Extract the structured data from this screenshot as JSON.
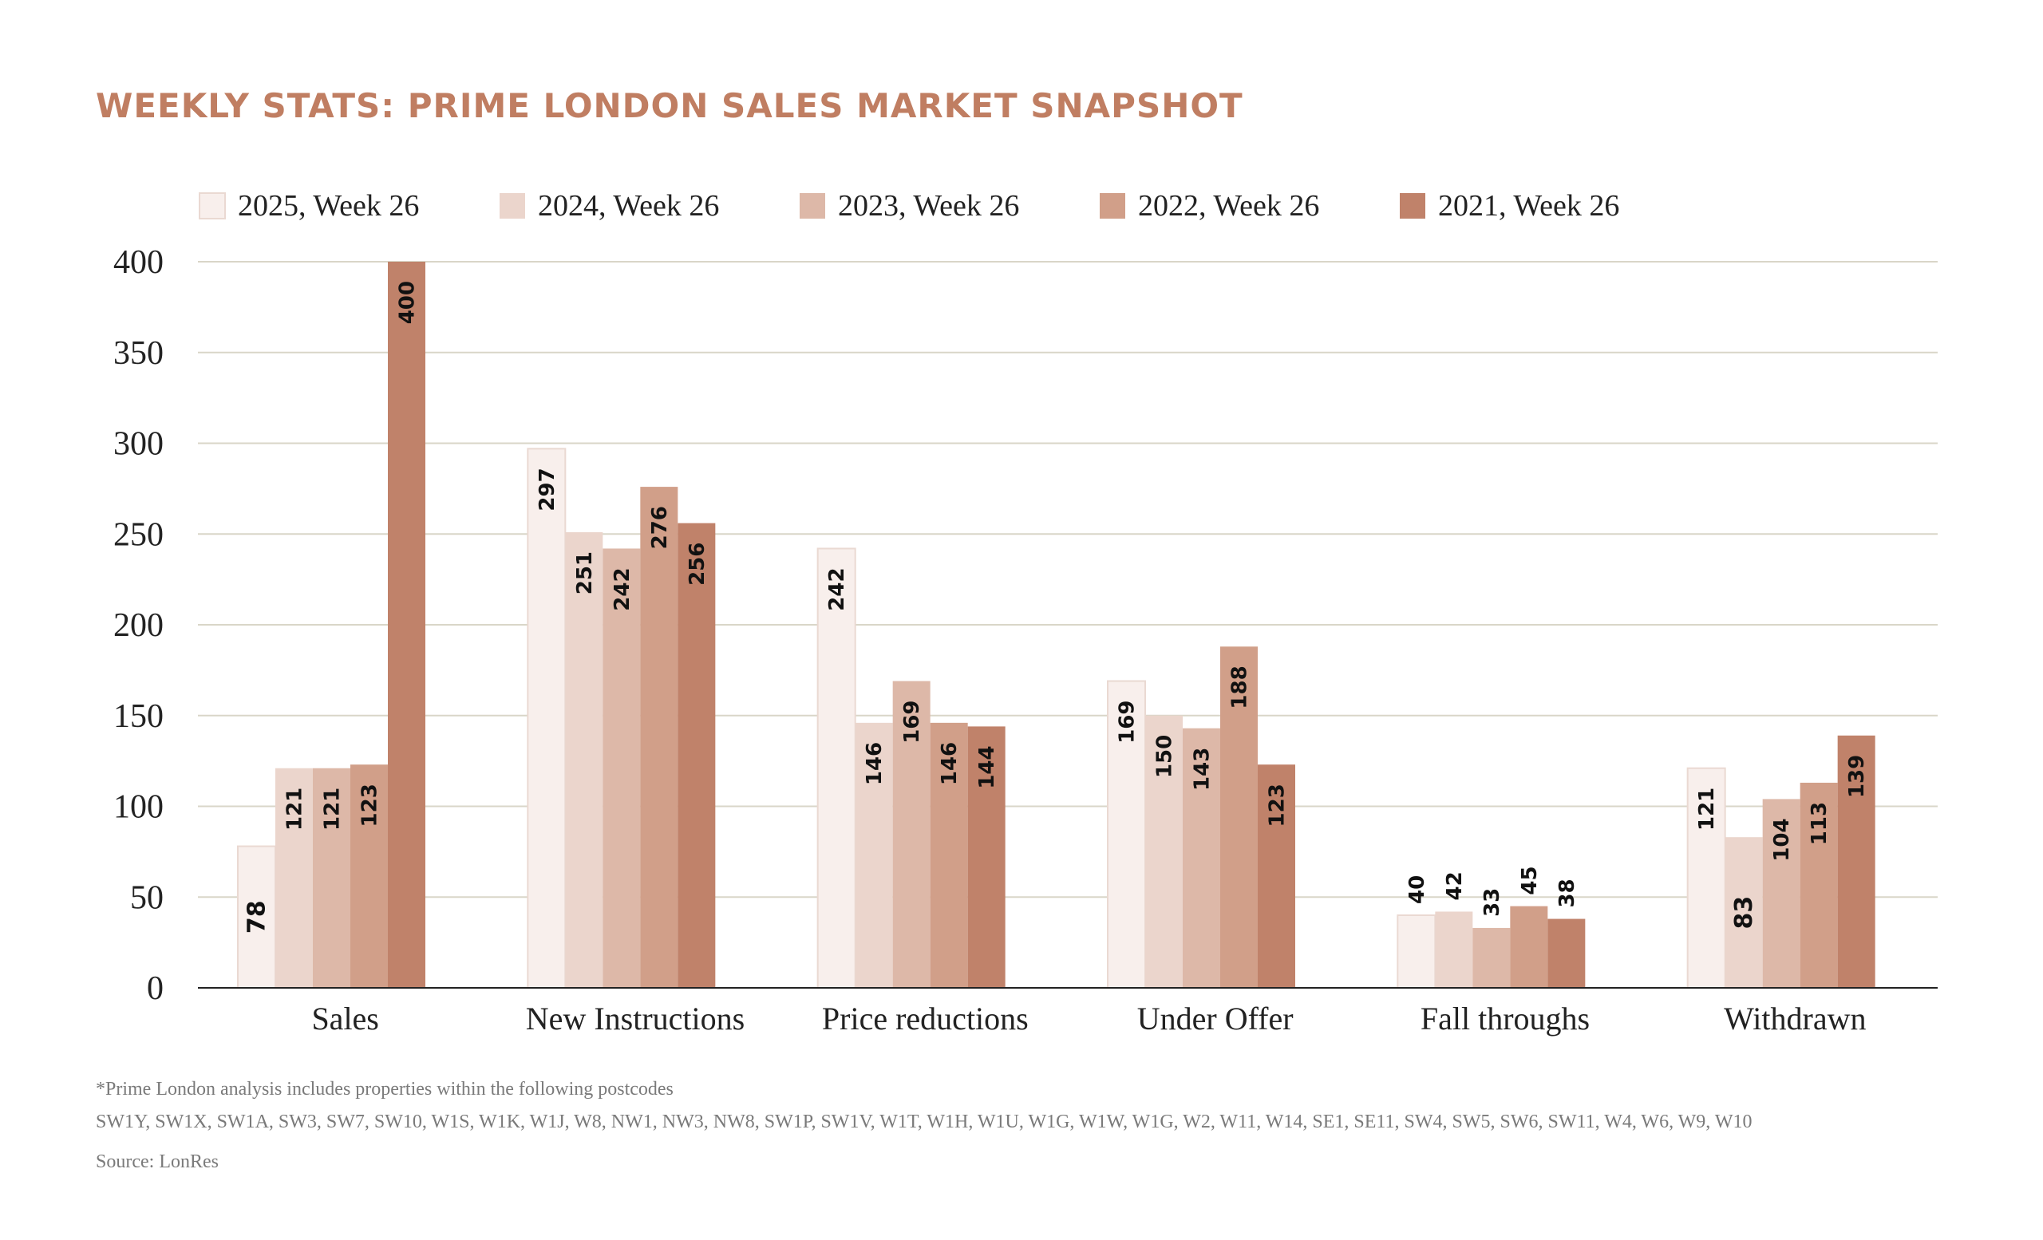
{
  "title": "WEEKLY STATS: PRIME LONDON SALES MARKET SNAPSHOT",
  "footnote": {
    "line1": "*Prime London analysis includes properties within the following postcodes",
    "line2": "SW1Y, SW1X, SW1A, SW3, SW7, SW10, W1S, W1K, W1J, W8, NW1, NW3, NW8, SW1P, SW1V, W1T, W1H, W1U, W1G, W1W, W1G, W2, W11, W14, SE1, SE11, SW4, SW5, SW6, SW11, W4, W6, W9, W10",
    "source": "Source: LonRes"
  },
  "chart_data": {
    "type": "bar",
    "title": "WEEKLY STATS: PRIME LONDON SALES MARKET SNAPSHOT",
    "categories": [
      "Sales",
      "New Instructions",
      "Price reductions",
      "Under Offer",
      "Fall throughs",
      "Withdrawn"
    ],
    "ylim": [
      0,
      400
    ],
    "yticks": [
      0,
      50,
      100,
      150,
      200,
      250,
      300,
      350,
      400
    ],
    "grid": true,
    "legend_position": "top",
    "series": [
      {
        "name": "2025, Week 26",
        "color": "#f8efec",
        "values": [
          78,
          297,
          242,
          169,
          40,
          121
        ]
      },
      {
        "name": "2024, Week 26",
        "color": "#ebd5cc",
        "values": [
          121,
          251,
          146,
          150,
          42,
          83
        ]
      },
      {
        "name": "2023, Week 26",
        "color": "#ddb8a8",
        "values": [
          121,
          242,
          169,
          143,
          33,
          104
        ]
      },
      {
        "name": "2022, Week 26",
        "color": "#d19f89",
        "values": [
          123,
          276,
          146,
          188,
          45,
          113
        ]
      },
      {
        "name": "2021, Week 26",
        "color": "#c0826a",
        "values": [
          400,
          256,
          144,
          123,
          38,
          139
        ]
      }
    ]
  }
}
